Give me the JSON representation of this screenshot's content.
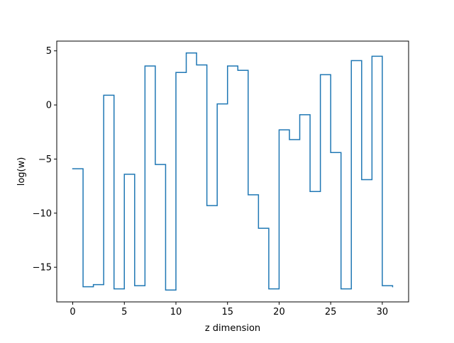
{
  "chart_data": {
    "type": "line",
    "step": "post",
    "xlabel": "z dimension",
    "ylabel": "log(w)",
    "xlim": [
      -1.55,
      32.55
    ],
    "ylim": [
      -18.2,
      5.9
    ],
    "xticks": [
      0,
      5,
      10,
      15,
      20,
      25,
      30
    ],
    "yticks": [
      -15,
      -10,
      -5,
      0,
      5
    ],
    "ytick_labels": [
      "−15",
      "−10",
      "−5",
      "0",
      "5"
    ],
    "series": [
      {
        "color": "#1f77b4",
        "x": [
          0,
          1,
          2,
          3,
          4,
          5,
          6,
          7,
          8,
          9,
          10,
          11,
          12,
          13,
          14,
          15,
          16,
          17,
          18,
          19,
          20,
          21,
          22,
          23,
          24,
          25,
          26,
          27,
          28,
          29,
          30,
          31
        ],
        "y": [
          -5.9,
          -16.8,
          -16.6,
          0.9,
          -17.0,
          -6.4,
          -16.7,
          3.6,
          -5.5,
          -17.1,
          3.0,
          4.8,
          3.7,
          -9.3,
          0.1,
          3.6,
          3.2,
          -8.3,
          -11.4,
          -17.0,
          -2.3,
          -3.2,
          -0.9,
          -8.0,
          2.8,
          -4.4,
          -17.0,
          4.1,
          -6.9,
          4.5,
          -16.7,
          -16.8
        ]
      }
    ]
  }
}
